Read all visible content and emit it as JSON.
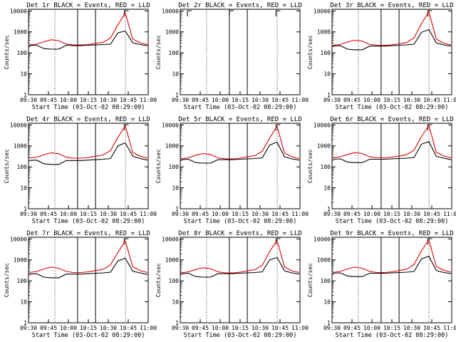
{
  "chart_data": [
    {
      "type": "line",
      "title": "Det 1r BLACK = Events, RED = LLD",
      "xlabel": "Start Time (03-Oct-02 08:29:00)",
      "ylabel": "Counts/sec",
      "xticks": [
        "09:30",
        "09:45",
        "10:00",
        "10:15",
        "10:30",
        "10:45",
        "11:00"
      ],
      "yticks": [
        "1",
        "10",
        "100",
        "1000",
        "10000"
      ],
      "ylim": [
        1,
        12000
      ],
      "yscale": "log",
      "series": [
        {
          "name": "Events",
          "color": "#000000",
          "values": [
            220,
            230,
            160,
            150,
            150,
            230,
            220,
            220,
            230,
            240,
            250,
            260,
            900,
            1100,
            300,
            250,
            220
          ]
        },
        {
          "name": "LLD",
          "color": "#dd0000",
          "values": [
            240,
            260,
            340,
            420,
            380,
            260,
            240,
            240,
            250,
            280,
            320,
            500,
            2200,
            8000,
            450,
            300,
            250
          ]
        }
      ]
    },
    {
      "type": "line",
      "title": "Det 2r BLACK = Events, RED = LLD",
      "xlabel": "Start Time (03-Oct-02 08:29:00)",
      "ylabel": "Counts/sec",
      "xticks": [
        "09:30",
        "09:45",
        "10:00",
        "10:15",
        "10:30",
        "10:45",
        "11:00"
      ],
      "yticks": [
        "1",
        "10",
        "100",
        "1000",
        "10000"
      ],
      "ylim": [
        1,
        12000
      ],
      "yscale": "log",
      "series": []
    },
    {
      "type": "line",
      "title": "Det 3r BLACK = Events, RED = LLD",
      "xlabel": "Start Time (03-Oct-02 08:29:00)",
      "ylabel": "Counts/sec",
      "xticks": [
        "09:30",
        "09:45",
        "10:00",
        "10:15",
        "10:30",
        "10:45",
        "11:00"
      ],
      "yticks": [
        "1",
        "10",
        "100",
        "1000",
        "10000"
      ],
      "ylim": [
        1,
        12000
      ],
      "yscale": "log",
      "series": [
        {
          "name": "Events",
          "color": "#000000",
          "values": [
            210,
            220,
            150,
            140,
            140,
            210,
            210,
            210,
            220,
            230,
            240,
            260,
            950,
            1300,
            300,
            240,
            210
          ]
        },
        {
          "name": "LLD",
          "color": "#dd0000",
          "values": [
            230,
            250,
            330,
            400,
            360,
            250,
            230,
            230,
            240,
            270,
            310,
            520,
            2500,
            9000,
            460,
            290,
            240
          ]
        }
      ]
    },
    {
      "type": "line",
      "title": "Det 4r BLACK = Events, RED = LLD",
      "xlabel": "Start Time (03-Oct-02 08:29:00)",
      "ylabel": "Counts/sec",
      "xticks": [
        "09:30",
        "09:45",
        "10:00",
        "10:15",
        "10:30",
        "10:45",
        "11:00"
      ],
      "yticks": [
        "1",
        "10",
        "100",
        "1000",
        "10000"
      ],
      "ylim": [
        1,
        12000
      ],
      "yscale": "log",
      "series": [
        {
          "name": "Events",
          "color": "#000000",
          "values": [
            200,
            210,
            140,
            130,
            130,
            200,
            200,
            200,
            210,
            220,
            230,
            250,
            1000,
            1400,
            320,
            250,
            210
          ]
        },
        {
          "name": "LLD",
          "color": "#dd0000",
          "values": [
            260,
            290,
            380,
            470,
            420,
            290,
            260,
            260,
            280,
            320,
            370,
            600,
            2600,
            9000,
            480,
            320,
            260
          ]
        }
      ]
    },
    {
      "type": "line",
      "title": "Det 5r BLACK = Events, RED = LLD",
      "xlabel": "Start Time (03-Oct-02 08:29:00)",
      "ylabel": "Counts/sec",
      "xticks": [
        "09:30",
        "09:45",
        "10:00",
        "10:15",
        "10:30",
        "10:45",
        "11:00"
      ],
      "yticks": [
        "1",
        "10",
        "100",
        "1000",
        "10000"
      ],
      "ylim": [
        1,
        12000
      ],
      "yscale": "log",
      "series": [
        {
          "name": "Events",
          "color": "#000000",
          "values": [
            220,
            230,
            160,
            150,
            150,
            220,
            220,
            220,
            230,
            240,
            250,
            270,
            1100,
            1500,
            300,
            240,
            210
          ]
        },
        {
          "name": "LLD",
          "color": "#dd0000",
          "values": [
            240,
            270,
            360,
            430,
            390,
            270,
            240,
            240,
            260,
            300,
            340,
            560,
            2400,
            8500,
            460,
            300,
            250
          ]
        }
      ]
    },
    {
      "type": "line",
      "title": "Det 6r BLACK = Events, RED = LLD",
      "xlabel": "Start Time (03-Oct-02 08:29:00)",
      "ylabel": "Counts/sec",
      "xticks": [
        "09:30",
        "09:45",
        "10:00",
        "10:15",
        "10:30",
        "10:45",
        "11:00"
      ],
      "yticks": [
        "1",
        "10",
        "100",
        "1000",
        "10000"
      ],
      "ylim": [
        1,
        12000
      ],
      "yscale": "log",
      "series": [
        {
          "name": "Events",
          "color": "#000000",
          "values": [
            230,
            240,
            170,
            160,
            160,
            230,
            230,
            230,
            240,
            250,
            260,
            280,
            1200,
            1600,
            320,
            260,
            220
          ]
        },
        {
          "name": "LLD",
          "color": "#dd0000",
          "values": [
            270,
            300,
            390,
            480,
            430,
            300,
            270,
            270,
            290,
            330,
            380,
            620,
            2800,
            9500,
            500,
            330,
            270
          ]
        }
      ]
    },
    {
      "type": "line",
      "title": "Det 7r BLACK = Events, RED = LLD",
      "xlabel": "Start Time (03-Oct-02 08:29:00)",
      "ylabel": "Counts/sec",
      "xticks": [
        "09:30",
        "09:45",
        "10:00",
        "10:15",
        "10:30",
        "10:45",
        "11:00"
      ],
      "yticks": [
        "1",
        "10",
        "100",
        "1000",
        "10000"
      ],
      "ylim": [
        1,
        12000
      ],
      "yscale": "log",
      "series": [
        {
          "name": "Events",
          "color": "#000000",
          "values": [
            210,
            220,
            150,
            140,
            140,
            210,
            210,
            210,
            220,
            230,
            240,
            260,
            900,
            1200,
            290,
            240,
            200
          ]
        },
        {
          "name": "LLD",
          "color": "#dd0000",
          "values": [
            250,
            280,
            370,
            450,
            400,
            280,
            250,
            250,
            270,
            310,
            360,
            580,
            2300,
            8000,
            470,
            310,
            250
          ]
        }
      ]
    },
    {
      "type": "line",
      "title": "Det 8r BLACK = Events, RED = LLD",
      "xlabel": "Start Time (03-Oct-02 08:29:00)",
      "ylabel": "Counts/sec",
      "xticks": [
        "09:30",
        "09:45",
        "10:00",
        "10:15",
        "10:30",
        "10:45",
        "11:00"
      ],
      "yticks": [
        "1",
        "10",
        "100",
        "1000",
        "10000"
      ],
      "ylim": [
        1,
        12000
      ],
      "yscale": "log",
      "series": [
        {
          "name": "Events",
          "color": "#000000",
          "values": [
            220,
            230,
            160,
            150,
            150,
            220,
            220,
            220,
            230,
            240,
            250,
            270,
            1000,
            1300,
            300,
            240,
            210
          ]
        },
        {
          "name": "LLD",
          "color": "#dd0000",
          "values": [
            240,
            270,
            350,
            420,
            380,
            270,
            240,
            240,
            260,
            300,
            340,
            560,
            2500,
            8500,
            460,
            300,
            250
          ]
        }
      ]
    },
    {
      "type": "line",
      "title": "Det 9r BLACK = Events, RED = LLD",
      "xlabel": "Start Time (03-Oct-02 08:29:00)",
      "ylabel": "Counts/sec",
      "xticks": [
        "09:30",
        "09:45",
        "10:00",
        "10:15",
        "10:30",
        "10:45",
        "11:00"
      ],
      "yticks": [
        "1",
        "10",
        "100",
        "1000",
        "10000"
      ],
      "ylim": [
        1,
        12000
      ],
      "yscale": "log",
      "series": [
        {
          "name": "Events",
          "color": "#000000",
          "values": [
            230,
            240,
            170,
            160,
            160,
            230,
            230,
            230,
            240,
            250,
            260,
            280,
            1100,
            1500,
            310,
            250,
            220
          ]
        },
        {
          "name": "LLD",
          "color": "#dd0000",
          "values": [
            250,
            280,
            370,
            450,
            400,
            280,
            250,
            250,
            270,
            310,
            360,
            600,
            2700,
            9000,
            480,
            320,
            260
          ]
        }
      ]
    }
  ]
}
